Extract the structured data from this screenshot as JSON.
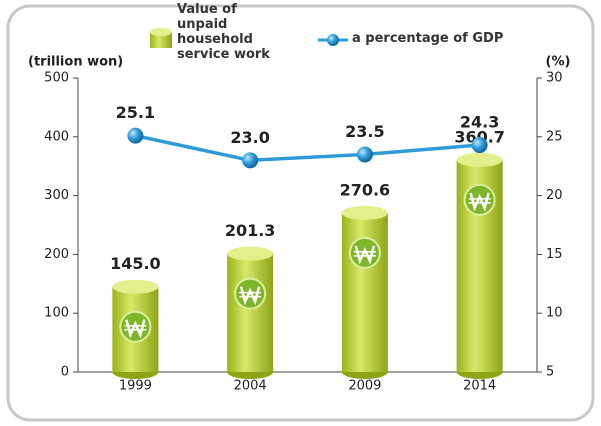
{
  "chart_data": {
    "type": "bar_line",
    "y_label": "(trillion won)",
    "y2_label": "(%)",
    "categories": [
      "1999",
      "2004",
      "2009",
      "2014"
    ],
    "series": [
      {
        "name": "Value of unpaid household service work",
        "type": "bar",
        "color": "#b3cb2c",
        "values": [
          145.0,
          201.3,
          270.6,
          360.7
        ],
        "value_labels": [
          "145.0",
          "201.3",
          "270.6",
          "360.7"
        ]
      },
      {
        "name": "a percentage of GDP",
        "type": "line",
        "axis": "y2",
        "color": "#2e9ad6",
        "values": [
          25.1,
          23.0,
          23.5,
          24.3
        ],
        "value_labels": [
          "25.1",
          "23.0",
          "23.5",
          "24.3"
        ]
      }
    ],
    "ylim": [
      0,
      500
    ],
    "yticks": [
      0,
      100,
      200,
      300,
      400,
      500
    ],
    "y2lim": [
      5,
      30
    ],
    "y2ticks": [
      5,
      10,
      15,
      20,
      25,
      30
    ]
  }
}
